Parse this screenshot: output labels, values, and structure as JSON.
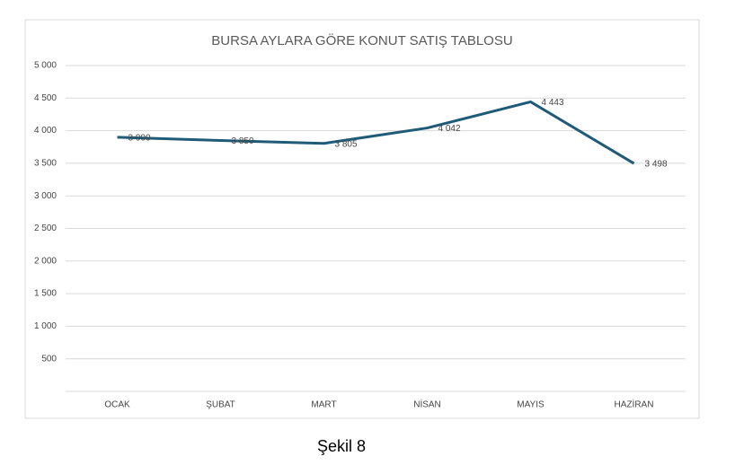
{
  "chart_data": {
    "type": "line",
    "title": "BURSA AYLARA GÖRE KONUT SATIŞ TABLOSU",
    "categories": [
      "OCAK",
      "ŞUBAT",
      "MART",
      "NİSAN",
      "MAYIS",
      "HAZİRAN"
    ],
    "values": [
      3900,
      3850,
      3805,
      4042,
      4443,
      3498
    ],
    "value_labels": [
      "3 900",
      "3 850",
      "3 805",
      "4 042",
      "4 443",
      "3 498"
    ],
    "color": "#1f5b78",
    "ylim": [
      0,
      5000
    ],
    "yticks": [
      500,
      {
        "value": 1000,
        "label": "1 000"
      },
      {
        "value": 1500,
        "label": "1 500"
      },
      {
        "value": 2000,
        "label": "2 000"
      },
      {
        "value": 2500,
        "label": "2 500"
      },
      {
        "value": 3000,
        "label": "3 000"
      },
      {
        "value": 3500,
        "label": "3 500"
      },
      {
        "value": 4000,
        "label": "4 000"
      },
      {
        "value": 4500,
        "label": "4 500"
      },
      {
        "value": 5000,
        "label": "5 000"
      }
    ],
    "grid": true
  },
  "caption": "Şekil 8"
}
